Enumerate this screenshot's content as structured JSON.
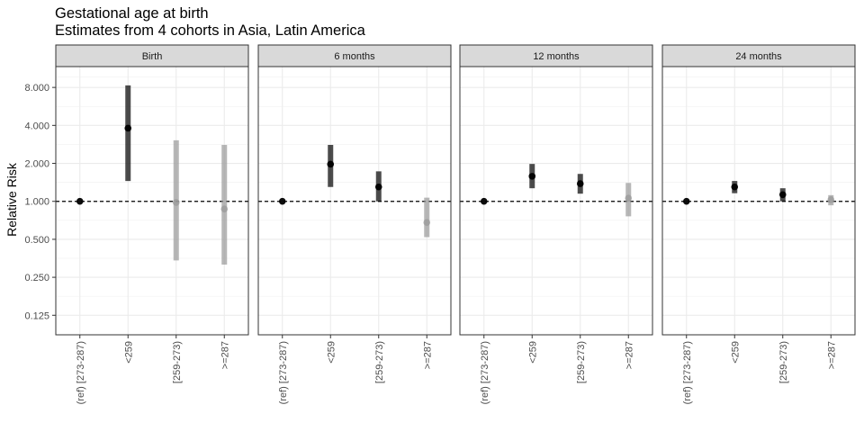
{
  "title": "Gestational age at birth",
  "subtitle": "Estimates from 4 cohorts in Asia, Latin America",
  "chart_data": {
    "type": "pointrange",
    "ylabel": "Relative Risk",
    "xlabel": "",
    "yscale": "log2",
    "ylim": [
      0.0875,
      11.7
    ],
    "yticks": [
      0.125,
      0.25,
      0.5,
      1.0,
      2.0,
      4.0,
      8.0
    ],
    "yticklabels": [
      "0.125",
      "0.250",
      "0.500",
      "1.000",
      "2.000",
      "4.000",
      "8.000"
    ],
    "reference_line": 1.0,
    "categories": [
      "(ref) [273-287)",
      "<259",
      "[259-273)",
      ">=287"
    ],
    "grid": true,
    "colors": {
      "significant": "#000000",
      "nonsignificant": "#999999",
      "reference_line": "#000000",
      "strip_bg": "#d9d9d9"
    },
    "panels": [
      {
        "name": "Birth",
        "points": [
          {
            "category": "(ref) [273-287)",
            "rr": 1.0,
            "lower": 1.0,
            "upper": 1.0,
            "significant": true
          },
          {
            "category": "<259",
            "rr": 3.8,
            "lower": 1.45,
            "upper": 8.3,
            "significant": true
          },
          {
            "category": "[259-273)",
            "rr": 0.98,
            "lower": 0.34,
            "upper": 3.05,
            "significant": false
          },
          {
            "category": ">=287",
            "rr": 0.87,
            "lower": 0.315,
            "upper": 2.8,
            "significant": false
          }
        ]
      },
      {
        "name": "6 months",
        "points": [
          {
            "category": "(ref) [273-287)",
            "rr": 1.0,
            "lower": 1.0,
            "upper": 1.0,
            "significant": true
          },
          {
            "category": "<259",
            "rr": 1.97,
            "lower": 1.3,
            "upper": 2.8,
            "significant": true
          },
          {
            "category": "[259-273)",
            "rr": 1.3,
            "lower": 1.0,
            "upper": 1.73,
            "significant": true
          },
          {
            "category": ">=287",
            "rr": 0.68,
            "lower": 0.52,
            "upper": 1.07,
            "significant": false
          }
        ]
      },
      {
        "name": "12 months",
        "points": [
          {
            "category": "(ref) [273-287)",
            "rr": 1.0,
            "lower": 1.0,
            "upper": 1.0,
            "significant": true
          },
          {
            "category": "<259",
            "rr": 1.58,
            "lower": 1.27,
            "upper": 1.98,
            "significant": true
          },
          {
            "category": "[259-273)",
            "rr": 1.38,
            "lower": 1.15,
            "upper": 1.65,
            "significant": true
          },
          {
            "category": ">=287",
            "rr": 1.06,
            "lower": 0.76,
            "upper": 1.4,
            "significant": false
          }
        ]
      },
      {
        "name": "24 months",
        "points": [
          {
            "category": "(ref) [273-287)",
            "rr": 1.0,
            "lower": 1.0,
            "upper": 1.0,
            "significant": true
          },
          {
            "category": "<259",
            "rr": 1.3,
            "lower": 1.16,
            "upper": 1.45,
            "significant": true
          },
          {
            "category": "[259-273)",
            "rr": 1.13,
            "lower": 1.0,
            "upper": 1.27,
            "significant": true
          },
          {
            "category": ">=287",
            "rr": 1.03,
            "lower": 0.93,
            "upper": 1.12,
            "significant": false
          }
        ]
      }
    ]
  }
}
